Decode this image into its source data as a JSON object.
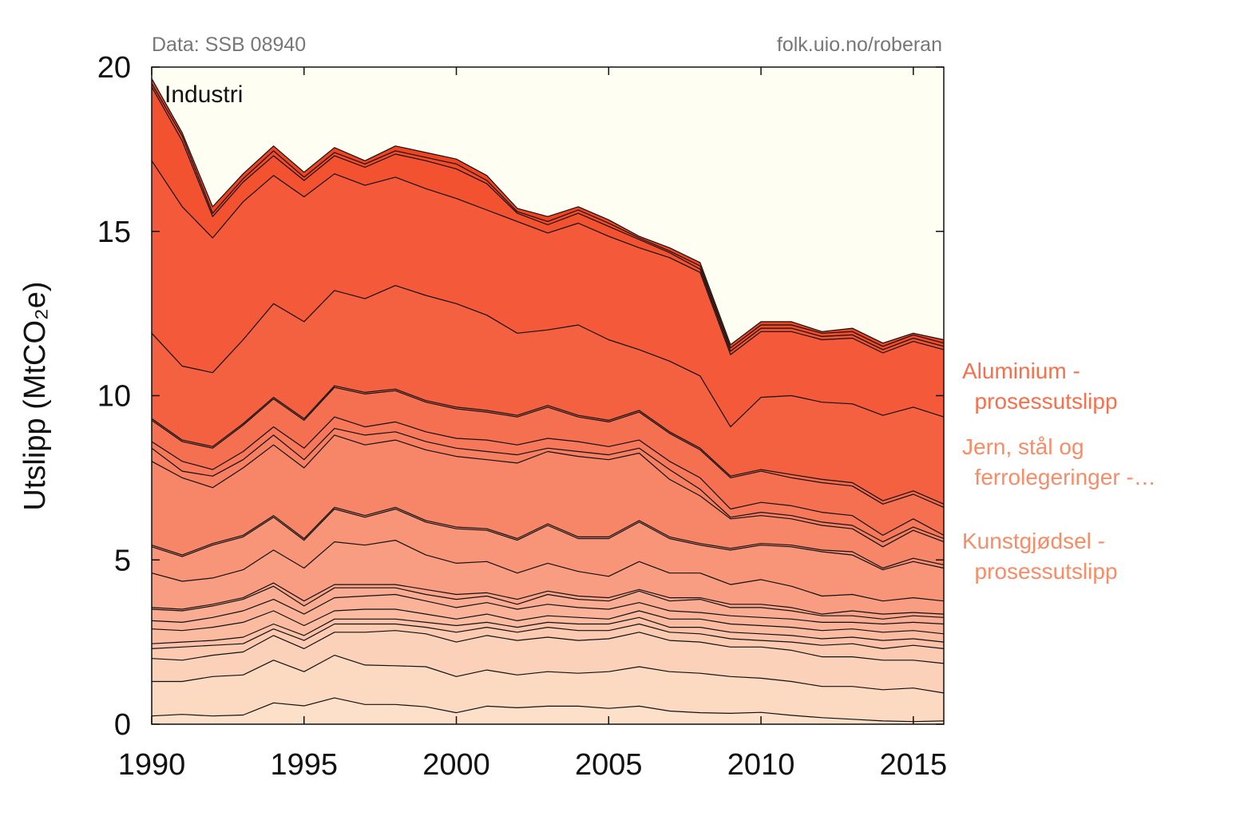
{
  "chart_data": {
    "type": "area",
    "stacked": true,
    "annotation": "Industri",
    "source_left": "Data: SSB 08940",
    "source_right": "folk.uio.no/roberan",
    "ylabel": "Utslipp (MtCO₂e)",
    "xlim": [
      1990,
      2016
    ],
    "ylim": [
      0,
      20
    ],
    "x_ticks": [
      1990,
      1995,
      2000,
      2005,
      2010,
      2015
    ],
    "y_ticks": [
      0,
      5,
      10,
      15,
      20
    ],
    "grid": false,
    "x": [
      1990,
      1991,
      1992,
      1993,
      1994,
      1995,
      1996,
      1997,
      1998,
      1999,
      2000,
      2001,
      2002,
      2003,
      2004,
      2005,
      2006,
      2007,
      2008,
      2009,
      2010,
      2011,
      2012,
      2013,
      2014,
      2015,
      2016
    ],
    "cumulative_boundaries": [
      [
        0.25,
        0.3,
        0.25,
        0.28,
        0.65,
        0.56,
        0.8,
        0.6,
        0.6,
        0.53,
        0.35,
        0.55,
        0.5,
        0.55,
        0.55,
        0.48,
        0.55,
        0.4,
        0.35,
        0.33,
        0.36,
        0.27,
        0.2,
        0.15,
        0.1,
        0.08,
        0.1
      ],
      [
        1.3,
        1.3,
        1.45,
        1.5,
        1.95,
        1.6,
        2.1,
        1.8,
        1.78,
        1.75,
        1.45,
        1.65,
        1.5,
        1.6,
        1.55,
        1.6,
        1.75,
        1.6,
        1.55,
        1.45,
        1.4,
        1.3,
        1.15,
        1.15,
        1.05,
        1.1,
        0.95
      ],
      [
        2.0,
        1.95,
        2.1,
        2.2,
        2.7,
        2.3,
        2.8,
        2.8,
        2.85,
        2.75,
        2.5,
        2.7,
        2.55,
        2.65,
        2.55,
        2.6,
        2.8,
        2.55,
        2.5,
        2.35,
        2.35,
        2.25,
        2.05,
        2.05,
        1.95,
        1.95,
        1.85
      ],
      [
        2.3,
        2.35,
        2.4,
        2.45,
        2.9,
        2.55,
        3.05,
        3.05,
        3.05,
        2.95,
        2.8,
        2.95,
        2.8,
        2.95,
        2.85,
        2.85,
        3.05,
        2.8,
        2.75,
        2.6,
        2.55,
        2.5,
        2.4,
        2.45,
        2.3,
        2.4,
        2.3
      ],
      [
        2.45,
        2.5,
        2.55,
        2.65,
        3.05,
        2.7,
        3.2,
        3.2,
        3.2,
        3.1,
        3.0,
        3.1,
        2.95,
        3.1,
        3.05,
        3.05,
        3.25,
        2.95,
        2.95,
        2.8,
        2.75,
        2.7,
        2.6,
        2.65,
        2.55,
        2.6,
        2.5
      ],
      [
        2.9,
        2.85,
        2.95,
        3.1,
        3.45,
        3.0,
        3.45,
        3.5,
        3.5,
        3.35,
        3.2,
        3.35,
        3.15,
        3.3,
        3.25,
        3.2,
        3.45,
        3.2,
        3.2,
        3.05,
        3.0,
        2.95,
        2.85,
        2.9,
        2.8,
        2.85,
        2.75
      ],
      [
        3.15,
        3.1,
        3.25,
        3.45,
        3.8,
        3.35,
        3.85,
        3.9,
        3.95,
        3.75,
        3.55,
        3.7,
        3.5,
        3.65,
        3.55,
        3.5,
        3.7,
        3.45,
        3.4,
        3.3,
        3.25,
        3.2,
        3.1,
        3.1,
        3.05,
        3.1,
        3.05
      ],
      [
        3.5,
        3.45,
        3.6,
        3.8,
        4.2,
        3.6,
        4.15,
        4.15,
        4.15,
        3.95,
        3.8,
        3.9,
        3.65,
        3.95,
        3.8,
        3.75,
        4.05,
        3.75,
        3.8,
        3.55,
        3.55,
        3.45,
        3.3,
        3.3,
        3.2,
        3.3,
        3.25
      ],
      [
        3.55,
        3.5,
        3.65,
        3.85,
        4.3,
        3.75,
        4.25,
        4.25,
        4.25,
        4.1,
        3.95,
        4.0,
        3.8,
        4.05,
        3.9,
        3.85,
        4.1,
        3.85,
        3.85,
        3.65,
        3.65,
        3.55,
        3.35,
        3.45,
        3.35,
        3.4,
        3.35
      ],
      [
        4.6,
        4.35,
        4.45,
        4.7,
        5.3,
        4.75,
        5.55,
        5.45,
        5.6,
        5.15,
        4.9,
        4.95,
        4.6,
        4.9,
        4.65,
        4.5,
        4.95,
        4.6,
        4.6,
        4.25,
        4.4,
        4.2,
        3.9,
        3.95,
        3.75,
        3.85,
        3.75
      ],
      [
        5.4,
        5.1,
        5.45,
        5.7,
        6.3,
        5.6,
        6.55,
        6.3,
        6.55,
        6.15,
        5.95,
        5.9,
        5.6,
        6.05,
        5.65,
        5.65,
        6.15,
        5.65,
        5.45,
        5.3,
        5.45,
        5.4,
        5.25,
        5.15,
        4.7,
        4.95,
        4.75
      ],
      [
        5.45,
        5.15,
        5.5,
        5.75,
        6.35,
        5.65,
        6.6,
        6.35,
        6.6,
        6.2,
        6.0,
        5.95,
        5.65,
        6.1,
        5.7,
        5.7,
        6.2,
        5.7,
        5.5,
        5.35,
        5.5,
        5.45,
        5.3,
        5.25,
        4.75,
        5.05,
        4.85
      ],
      [
        8.0,
        7.5,
        7.2,
        7.8,
        8.5,
        7.8,
        8.8,
        8.5,
        8.65,
        8.35,
        8.15,
        8.05,
        7.95,
        8.3,
        8.15,
        8.05,
        8.25,
        7.45,
        6.95,
        6.25,
        6.35,
        6.25,
        6.05,
        5.95,
        5.4,
        5.9,
        5.55
      ],
      [
        8.4,
        7.7,
        7.55,
        8.05,
        8.8,
        8.05,
        9.0,
        8.8,
        8.9,
        8.6,
        8.4,
        8.3,
        8.2,
        8.4,
        8.3,
        8.2,
        8.4,
        7.75,
        7.15,
        6.3,
        6.45,
        6.35,
        6.15,
        6.05,
        5.55,
        6.0,
        5.65
      ],
      [
        8.6,
        8.0,
        7.75,
        8.3,
        9.05,
        8.4,
        9.35,
        9.05,
        9.2,
        8.9,
        8.7,
        8.65,
        8.5,
        8.7,
        8.6,
        8.45,
        8.65,
        8.0,
        7.5,
        6.55,
        6.75,
        6.65,
        6.45,
        6.35,
        5.75,
        6.25,
        5.75
      ],
      [
        9.25,
        8.6,
        8.4,
        9.1,
        9.9,
        9.25,
        10.25,
        10.05,
        10.15,
        9.8,
        9.6,
        9.5,
        9.35,
        9.65,
        9.35,
        9.2,
        9.5,
        8.85,
        8.35,
        7.5,
        7.7,
        7.5,
        7.35,
        7.25,
        6.7,
        7.0,
        6.6
      ],
      [
        9.3,
        8.65,
        8.45,
        9.15,
        9.95,
        9.3,
        10.3,
        10.1,
        10.2,
        9.85,
        9.65,
        9.55,
        9.4,
        9.7,
        9.4,
        9.25,
        9.55,
        8.9,
        8.4,
        7.55,
        7.75,
        7.6,
        7.45,
        7.35,
        6.8,
        7.1,
        6.7
      ],
      [
        11.9,
        10.9,
        10.7,
        11.7,
        12.8,
        12.25,
        13.2,
        12.95,
        13.35,
        13.05,
        12.8,
        12.45,
        11.9,
        12.0,
        12.15,
        11.7,
        11.4,
        11.05,
        10.6,
        9.05,
        9.95,
        10.0,
        9.8,
        9.75,
        9.4,
        9.65,
        9.35
      ],
      [
        17.15,
        15.75,
        14.8,
        15.9,
        16.7,
        16.05,
        16.75,
        16.4,
        16.65,
        16.3,
        16.0,
        15.65,
        15.3,
        14.95,
        15.25,
        14.85,
        14.5,
        14.2,
        13.75,
        11.25,
        11.95,
        11.95,
        11.7,
        11.75,
        11.3,
        11.65,
        11.4
      ],
      [
        19.4,
        17.75,
        15.45,
        16.5,
        17.3,
        16.55,
        17.3,
        16.95,
        17.35,
        17.15,
        16.9,
        16.45,
        15.55,
        15.2,
        15.55,
        15.15,
        14.75,
        14.35,
        13.85,
        11.35,
        12.05,
        12.05,
        11.8,
        11.85,
        11.4,
        11.75,
        11.5
      ],
      [
        19.5,
        17.9,
        15.55,
        16.6,
        17.45,
        16.65,
        17.4,
        17.05,
        17.45,
        17.25,
        17.05,
        16.55,
        15.6,
        15.3,
        15.65,
        15.25,
        14.8,
        14.4,
        13.95,
        11.45,
        12.15,
        12.15,
        11.9,
        11.95,
        11.5,
        11.85,
        11.6
      ],
      [
        19.65,
        18.0,
        15.75,
        16.75,
        17.6,
        16.8,
        17.55,
        17.15,
        17.6,
        17.4,
        17.2,
        16.7,
        15.7,
        15.45,
        15.75,
        15.35,
        14.85,
        14.5,
        14.05,
        11.55,
        12.25,
        12.25,
        11.95,
        12.05,
        11.6,
        11.9,
        11.7
      ]
    ],
    "category_labels": [
      {
        "lines": [
          "Aluminium -",
          "  prosessutslipp"
        ],
        "color": "#f7704d"
      },
      {
        "lines": [
          "Jern, stål og",
          "  ferrolegeringer -…"
        ],
        "color": "#f98c66"
      },
      {
        "lines": [
          "Kunstgjødsel -",
          "  prosessutslipp"
        ],
        "color": "#f98c66"
      }
    ],
    "colors": {
      "background": "#fefef3",
      "light": "#fde0c9",
      "dark": "#f24321",
      "outline": "#111111"
    }
  }
}
